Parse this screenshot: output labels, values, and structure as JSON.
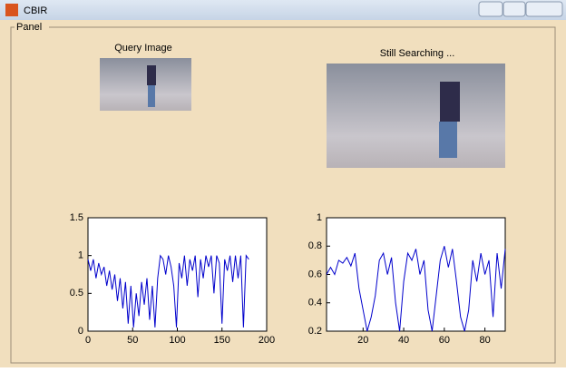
{
  "window": {
    "title": "CBIR"
  },
  "panel": {
    "label": "Panel"
  },
  "query_label": "Query Image",
  "result_label": "Still Searching ...",
  "chart_data": [
    {
      "type": "line",
      "x": [
        0,
        3,
        6,
        9,
        12,
        15,
        18,
        21,
        24,
        27,
        30,
        33,
        36,
        39,
        42,
        45,
        48,
        51,
        54,
        57,
        60,
        63,
        66,
        69,
        72,
        75,
        78,
        81,
        84,
        87,
        90,
        93,
        96,
        99,
        102,
        105,
        108,
        111,
        114,
        117,
        120,
        123,
        126,
        129,
        132,
        135,
        138,
        141,
        144,
        147,
        150,
        153,
        156,
        159,
        162,
        165,
        168,
        171,
        174,
        177,
        180
      ],
      "series": [
        {
          "color": "#0000cc",
          "values": [
            0.95,
            0.8,
            0.95,
            0.7,
            0.9,
            0.75,
            0.85,
            0.6,
            0.8,
            0.55,
            0.75,
            0.4,
            0.7,
            0.3,
            0.65,
            0.1,
            0.6,
            0.05,
            0.5,
            0.2,
            0.65,
            0.35,
            0.7,
            0.15,
            0.6,
            0.05,
            0.7,
            1.0,
            0.95,
            0.75,
            1.0,
            0.85,
            0.6,
            0.05,
            0.9,
            0.7,
            1.0,
            0.6,
            0.95,
            0.8,
            1.0,
            0.45,
            0.95,
            0.7,
            1.0,
            0.85,
            1.0,
            0.5,
            1.0,
            0.9,
            0.1,
            0.95,
            0.8,
            1.0,
            0.65,
            1.0,
            0.7,
            1.0,
            0.05,
            1.0,
            0.95
          ]
        }
      ],
      "xlim": [
        0,
        200
      ],
      "xticks": [
        0,
        50,
        100,
        150,
        200
      ],
      "ylim": [
        0,
        1.5
      ],
      "yticks": [
        0,
        0.5,
        1,
        1.5
      ]
    },
    {
      "type": "line",
      "x": [
        2,
        4,
        6,
        8,
        10,
        12,
        14,
        16,
        18,
        20,
        22,
        24,
        26,
        28,
        30,
        32,
        34,
        36,
        38,
        40,
        42,
        44,
        46,
        48,
        50,
        52,
        54,
        56,
        58,
        60,
        62,
        64,
        66,
        68,
        70,
        72,
        74,
        76,
        78,
        80,
        82,
        84,
        86,
        88,
        90
      ],
      "series": [
        {
          "color": "#0000cc",
          "values": [
            0.6,
            0.65,
            0.6,
            0.7,
            0.68,
            0.72,
            0.66,
            0.75,
            0.5,
            0.35,
            0.2,
            0.3,
            0.45,
            0.7,
            0.75,
            0.6,
            0.72,
            0.4,
            0.2,
            0.55,
            0.75,
            0.7,
            0.78,
            0.6,
            0.7,
            0.35,
            0.2,
            0.45,
            0.7,
            0.8,
            0.65,
            0.78,
            0.55,
            0.3,
            0.2,
            0.35,
            0.7,
            0.55,
            0.75,
            0.6,
            0.7,
            0.3,
            0.75,
            0.5,
            0.78
          ]
        }
      ],
      "xlim": [
        2,
        90
      ],
      "xticks": [
        20,
        40,
        60,
        80
      ],
      "ylim": [
        0.2,
        1
      ],
      "yticks": [
        0.2,
        0.4,
        0.6,
        0.8,
        1
      ]
    }
  ]
}
